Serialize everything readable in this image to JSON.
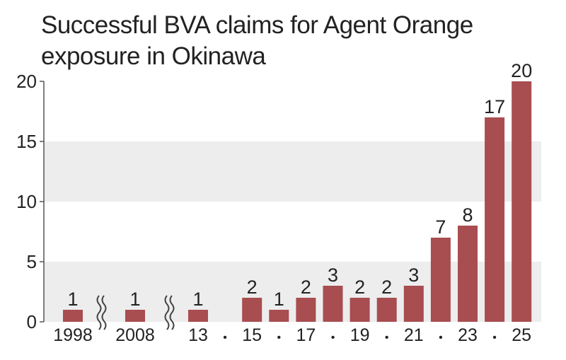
{
  "chart_data": {
    "type": "bar",
    "title": "Successful BVA claims for Agent Orange exposure in Okinawa",
    "categories": [
      "1998",
      "2008",
      "13",
      "•",
      "15",
      "•",
      "17",
      "•",
      "19",
      "•",
      "21",
      "•",
      "23",
      "•",
      "25"
    ],
    "values": [
      1,
      1,
      1,
      null,
      2,
      1,
      2,
      3,
      2,
      2,
      3,
      7,
      8,
      17,
      20
    ],
    "color": "#a84d50",
    "ylim": [
      0,
      20
    ],
    "yticks": [
      0,
      5,
      10,
      15,
      20
    ],
    "grid": "bands",
    "band_color": "#ededed"
  }
}
